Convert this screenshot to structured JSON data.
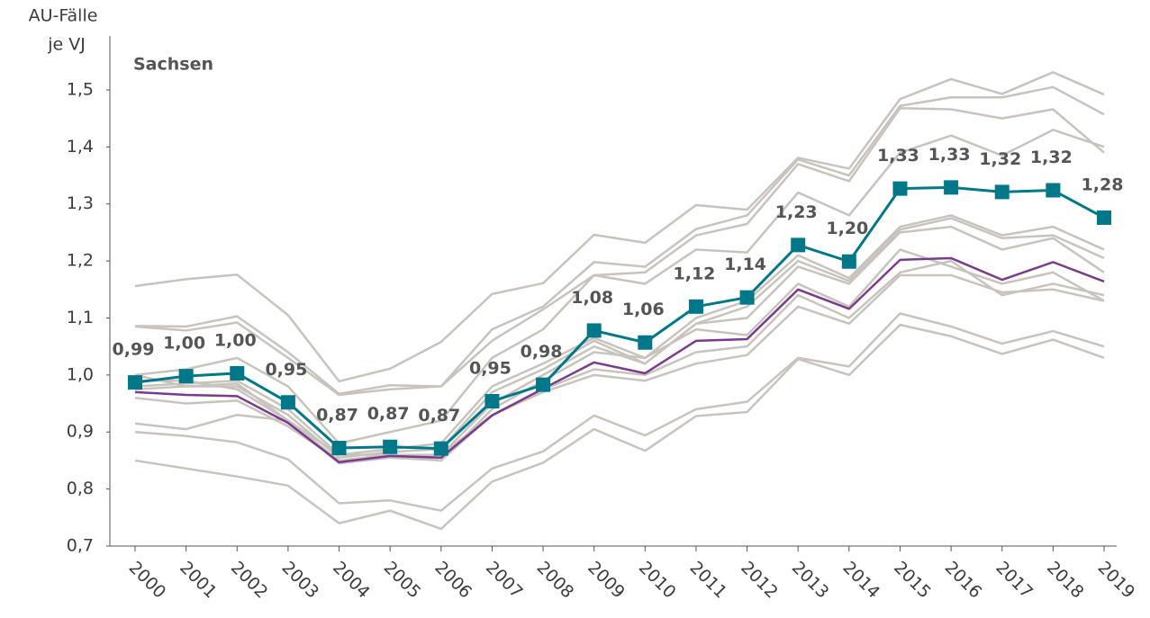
{
  "chart_data": {
    "type": "line",
    "y_label": [
      "AU-Fälle",
      "je VJ"
    ],
    "categories": [
      "2000",
      "2001",
      "2002",
      "2003",
      "2004",
      "2005",
      "2006",
      "2007",
      "2008",
      "2009",
      "2010",
      "2011",
      "2012",
      "2013",
      "2014",
      "2015",
      "2016",
      "2017",
      "2018",
      "2019"
    ],
    "ylim": [
      0.7,
      1.6
    ],
    "yticks": [
      {
        "value": 0.7,
        "label": "0,7"
      },
      {
        "value": 0.8,
        "label": "0,8"
      },
      {
        "value": 0.9,
        "label": "0,9"
      },
      {
        "value": 1.0,
        "label": "1,0"
      },
      {
        "value": 1.1,
        "label": "1,1"
      },
      {
        "value": 1.2,
        "label": "1,2"
      },
      {
        "value": 1.3,
        "label": "1,3"
      },
      {
        "value": 1.4,
        "label": "1,4"
      },
      {
        "value": 1.5,
        "label": "1,5"
      }
    ],
    "grid": false,
    "series": [
      {
        "color": "#c9c3bd",
        "values": [
          1.156,
          1.168,
          1.176,
          1.105,
          0.989,
          1.011,
          1.058,
          1.142,
          1.161,
          1.246,
          1.232,
          1.298,
          1.29,
          1.381,
          1.362,
          1.484,
          1.519,
          1.493,
          1.531,
          1.492
        ]
      },
      {
        "color": "#c9c3bd",
        "values": [
          1.086,
          1.085,
          1.103,
          1.04,
          0.967,
          0.982,
          0.98,
          1.08,
          1.12,
          1.198,
          1.19,
          1.256,
          1.28,
          1.378,
          1.35,
          1.472,
          1.487,
          1.487,
          1.505,
          1.457
        ]
      },
      {
        "color": "#c9c3bd",
        "values": [
          1.085,
          1.078,
          1.092,
          1.03,
          0.965,
          0.975,
          0.98,
          1.06,
          1.115,
          1.175,
          1.18,
          1.245,
          1.265,
          1.37,
          1.34,
          1.468,
          1.466,
          1.45,
          1.466,
          1.39
        ]
      },
      {
        "color": "#c9c3bd",
        "values": [
          1.0,
          1.01,
          1.03,
          0.98,
          0.88,
          0.9,
          0.92,
          1.03,
          1.08,
          1.175,
          1.16,
          1.22,
          1.215,
          1.32,
          1.28,
          1.39,
          1.42,
          1.385,
          1.43,
          1.4
        ]
      },
      {
        "color": "#c9c3bd",
        "values": [
          0.98,
          0.985,
          0.99,
          0.94,
          0.86,
          0.87,
          0.88,
          0.98,
          1.02,
          1.065,
          1.03,
          1.1,
          1.13,
          1.21,
          1.17,
          1.26,
          1.28,
          1.245,
          1.26,
          1.22
        ]
      },
      {
        "color": "#c9c3bd",
        "values": [
          0.975,
          0.98,
          0.98,
          0.93,
          0.855,
          0.865,
          0.87,
          0.97,
          1.01,
          1.06,
          1.02,
          1.09,
          1.12,
          1.2,
          1.165,
          1.255,
          1.275,
          1.24,
          1.245,
          1.205
        ]
      },
      {
        "color": "#c9c3bd",
        "values": [
          0.96,
          0.95,
          0.955,
          0.91,
          0.85,
          0.86,
          0.86,
          0.95,
          1.0,
          1.05,
          1.02,
          1.09,
          1.1,
          1.19,
          1.16,
          1.25,
          1.26,
          1.22,
          1.24,
          1.18
        ]
      },
      {
        "color": "#c9c3bd",
        "values": [
          0.915,
          0.905,
          0.93,
          0.92,
          0.845,
          0.855,
          0.85,
          0.94,
          0.99,
          1.04,
          1.03,
          1.08,
          1.07,
          1.16,
          1.12,
          1.22,
          1.19,
          1.16,
          1.18,
          1.13
        ]
      },
      {
        "color": "#c9c3bd",
        "values": [
          0.9,
          0.893,
          0.882,
          0.852,
          0.775,
          0.78,
          0.762,
          0.836,
          0.866,
          0.929,
          0.894,
          0.94,
          0.953,
          1.03,
          1.015,
          1.108,
          1.085,
          1.055,
          1.077,
          1.05
        ]
      },
      {
        "color": "#c9c3bd",
        "values": [
          0.85,
          0.836,
          0.822,
          0.806,
          0.74,
          0.762,
          0.73,
          0.813,
          0.846,
          0.905,
          0.867,
          0.928,
          0.935,
          1.028,
          1.0,
          1.088,
          1.068,
          1.037,
          1.062,
          1.03
        ]
      },
      {
        "color": "#c9c3bd",
        "values": [
          0.99,
          0.99,
          0.975,
          0.92,
          0.86,
          0.86,
          0.85,
          0.93,
          0.97,
          1.0,
          0.99,
          1.02,
          1.035,
          1.12,
          1.09,
          1.175,
          1.175,
          1.145,
          1.15,
          1.13
        ]
      },
      {
        "color": "#c9c3bd",
        "values": [
          1.0,
          0.98,
          0.985,
          0.92,
          0.85,
          0.855,
          0.86,
          0.93,
          0.975,
          1.01,
          1.0,
          1.04,
          1.05,
          1.14,
          1.1,
          1.18,
          1.2,
          1.14,
          1.16,
          1.14
        ]
      },
      {
        "color": "#7b3a8e",
        "values": [
          0.97,
          0.965,
          0.963,
          0.916,
          0.847,
          0.858,
          0.855,
          0.929,
          0.976,
          1.022,
          1.003,
          1.06,
          1.063,
          1.15,
          1.116,
          1.202,
          1.205,
          1.167,
          1.198,
          1.164
        ]
      },
      {
        "name": "Sachsen",
        "color": "#00788a",
        "markers": true,
        "values": [
          0.987,
          0.998,
          1.003,
          0.952,
          0.872,
          0.874,
          0.871,
          0.954,
          0.983,
          1.078,
          1.057,
          1.12,
          1.136,
          1.228,
          1.199,
          1.327,
          1.329,
          1.321,
          1.324,
          1.276
        ],
        "value_labels": [
          "0,99",
          "1,00",
          "1,00",
          "0,95",
          "0,87",
          "0,87",
          "0,87",
          "0,95",
          "0,98",
          "1,08",
          "1,06",
          "1,12",
          "1,14",
          "1,23",
          "1,20",
          "1,33",
          "1,33",
          "1,32",
          "1,32",
          "1,28"
        ]
      }
    ]
  }
}
